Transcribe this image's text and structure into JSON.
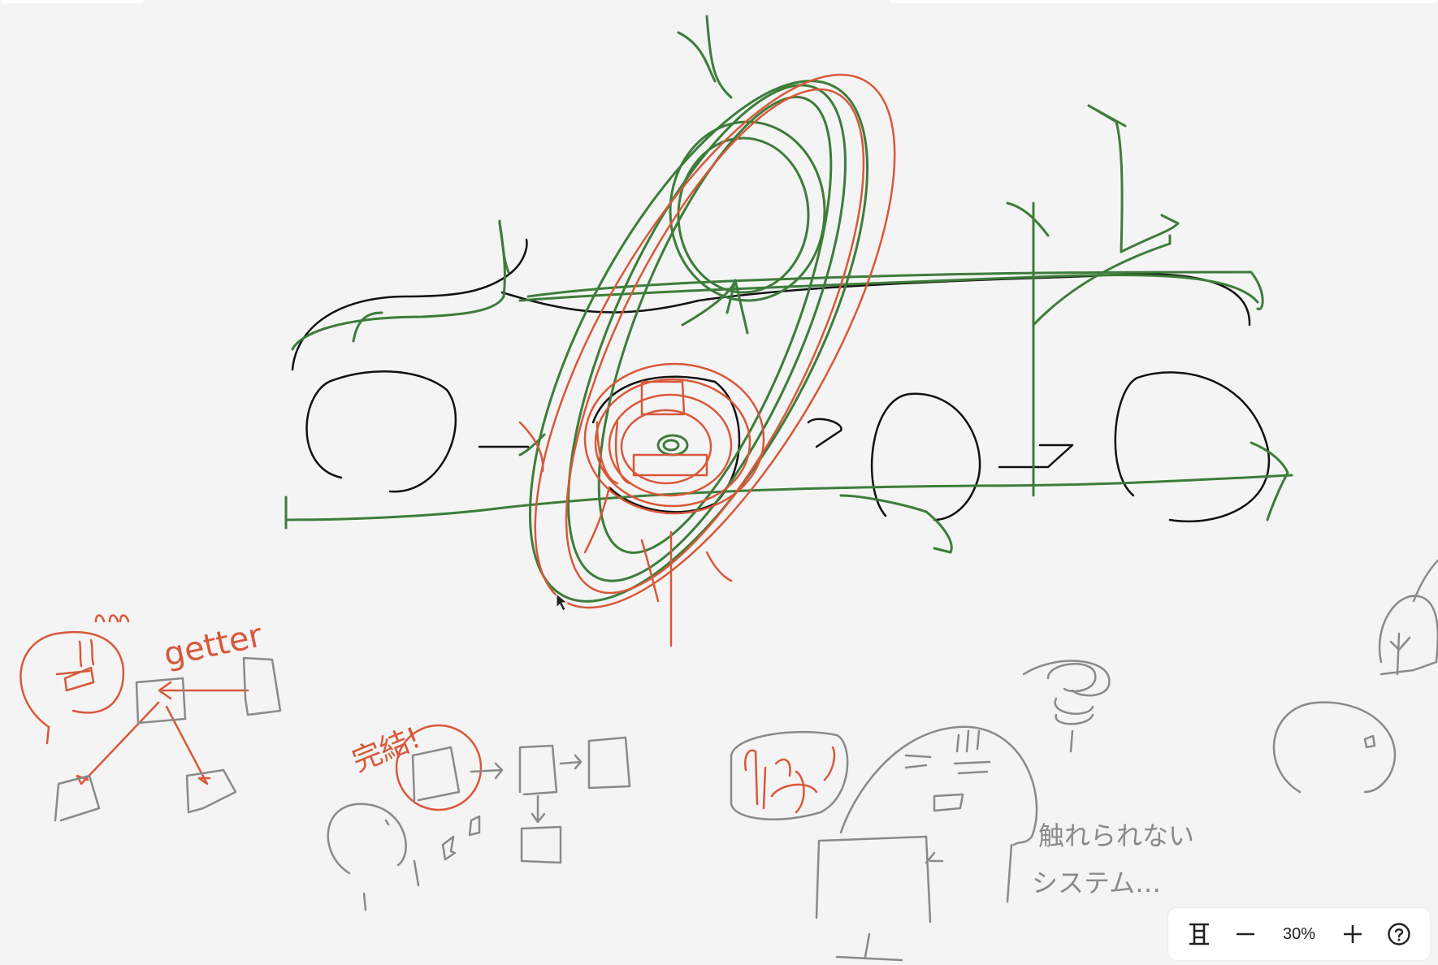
{
  "canvas": {
    "background": "#f4f4f4",
    "ink_colors": {
      "black": "#111111",
      "green": "#3d7d3a",
      "red": "#d8583a",
      "gray": "#8a8a8a"
    },
    "handwritten_labels": {
      "getter": "getter",
      "kanketsu": "完結!",
      "furerarenai": "触れられない",
      "system": "システム…"
    }
  },
  "zoom_toolbar": {
    "fit_icon": "fit-to-screen-icon",
    "zoom_out_icon": "minus-icon",
    "zoom_level": "30%",
    "zoom_in_icon": "plus-icon",
    "help_icon": "question-circle-icon"
  }
}
